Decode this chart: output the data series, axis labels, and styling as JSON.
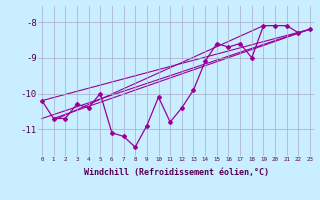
{
  "x": [
    0,
    1,
    2,
    3,
    4,
    5,
    6,
    7,
    8,
    9,
    10,
    11,
    12,
    13,
    14,
    15,
    16,
    17,
    18,
    19,
    20,
    21,
    22,
    23
  ],
  "y_main": [
    -10.2,
    -10.7,
    -10.7,
    -10.3,
    -10.4,
    -10.0,
    -11.1,
    -11.2,
    -11.5,
    -10.9,
    -10.1,
    -10.8,
    -10.4,
    -9.9,
    -9.1,
    -8.6,
    -8.7,
    -8.6,
    -9.0,
    -8.1,
    -8.1,
    -8.1,
    -8.3,
    -8.2
  ],
  "line_color": "#990099",
  "bg_color": "#c8eeff",
  "grid_color": "#aaaacc",
  "xlabel": "Windchill (Refroidissement éolien,°C)",
  "yticks": [
    -8,
    -9,
    -10,
    -11
  ],
  "xticks": [
    0,
    1,
    2,
    3,
    4,
    5,
    6,
    7,
    8,
    9,
    10,
    11,
    12,
    13,
    14,
    15,
    16,
    17,
    18,
    19,
    20,
    21,
    22,
    23
  ],
  "ylim": [
    -11.75,
    -7.55
  ],
  "xlim": [
    -0.3,
    23.3
  ],
  "trend_lines": [
    {
      "x0": 0,
      "y0": -10.2,
      "x1": 23,
      "y1": -8.2
    },
    {
      "x0": 1,
      "y0": -10.7,
      "x1": 23,
      "y1": -8.2
    },
    {
      "x0": 0,
      "y0": -10.7,
      "x1": 22,
      "y1": -8.3
    },
    {
      "x0": 1,
      "y0": -10.75,
      "x1": 19,
      "y1": -8.1
    }
  ]
}
